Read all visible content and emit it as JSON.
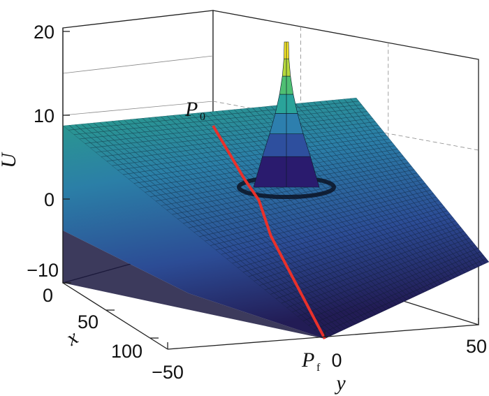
{
  "chart_data": {
    "type": "surface",
    "xlabel": "x",
    "ylabel": "y",
    "zlabel": "U",
    "x_ticks": [
      "0",
      "50",
      "100"
    ],
    "y_ticks": [
      "−50",
      "0",
      "50"
    ],
    "z_ticks": [
      "20",
      "10",
      "0",
      "−10"
    ],
    "xlim": [
      0,
      120
    ],
    "ylim": [
      -50,
      50
    ],
    "zlim": [
      -10,
      20
    ],
    "colormap": [
      "#2a1b6e",
      "#2e4f9e",
      "#2d7fae",
      "#2aa39a",
      "#4fbf73",
      "#b6d83b",
      "#f7e627"
    ],
    "grid": true,
    "obstacle_peak": {
      "x": 60,
      "y": 15,
      "U": 18
    },
    "path": {
      "color": "#e8312b",
      "points": [
        {
          "x": 0,
          "y": 0
        },
        {
          "x": 30,
          "y": 4
        },
        {
          "x": 42,
          "y": 8
        },
        {
          "x": 62,
          "y": 0
        },
        {
          "x": 120,
          "y": 0
        }
      ],
      "start_label": "P",
      "start_sub": "0",
      "end_label": "P",
      "end_sub": "f"
    }
  }
}
